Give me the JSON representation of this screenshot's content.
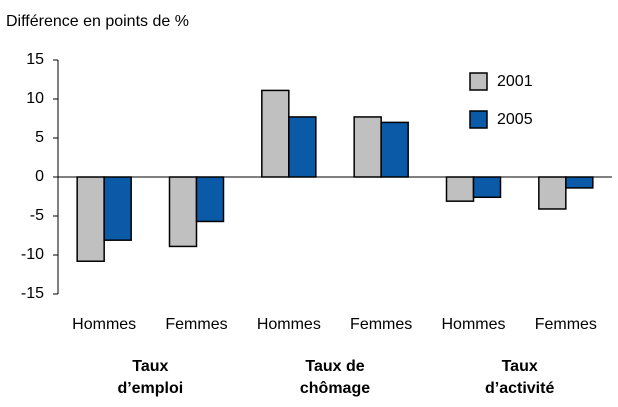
{
  "chart_data": {
    "type": "bar",
    "y_axis_label": "Différence en points de %",
    "categories": [
      "Hommes",
      "Femmes",
      "Hommes",
      "Femmes",
      "Hommes",
      "Femmes"
    ],
    "group_labels": [
      [
        "Taux",
        "d’emploi"
      ],
      [
        "Taux de",
        "chômage"
      ],
      [
        "Taux",
        "d’activité"
      ]
    ],
    "series": [
      {
        "name": "2001",
        "color": "#c0c0c0",
        "values": [
          -10.8,
          -8.9,
          11.1,
          7.7,
          -3.1,
          -4.1
        ]
      },
      {
        "name": "2005",
        "color": "#0b5aa8",
        "values": [
          -8.1,
          -5.7,
          7.7,
          7.0,
          -2.6,
          -1.4
        ]
      }
    ],
    "ylim": [
      -15,
      15
    ],
    "yticks": [
      -15,
      -10,
      -5,
      0,
      5,
      10,
      15
    ],
    "grid": false,
    "legend": "top-right"
  }
}
